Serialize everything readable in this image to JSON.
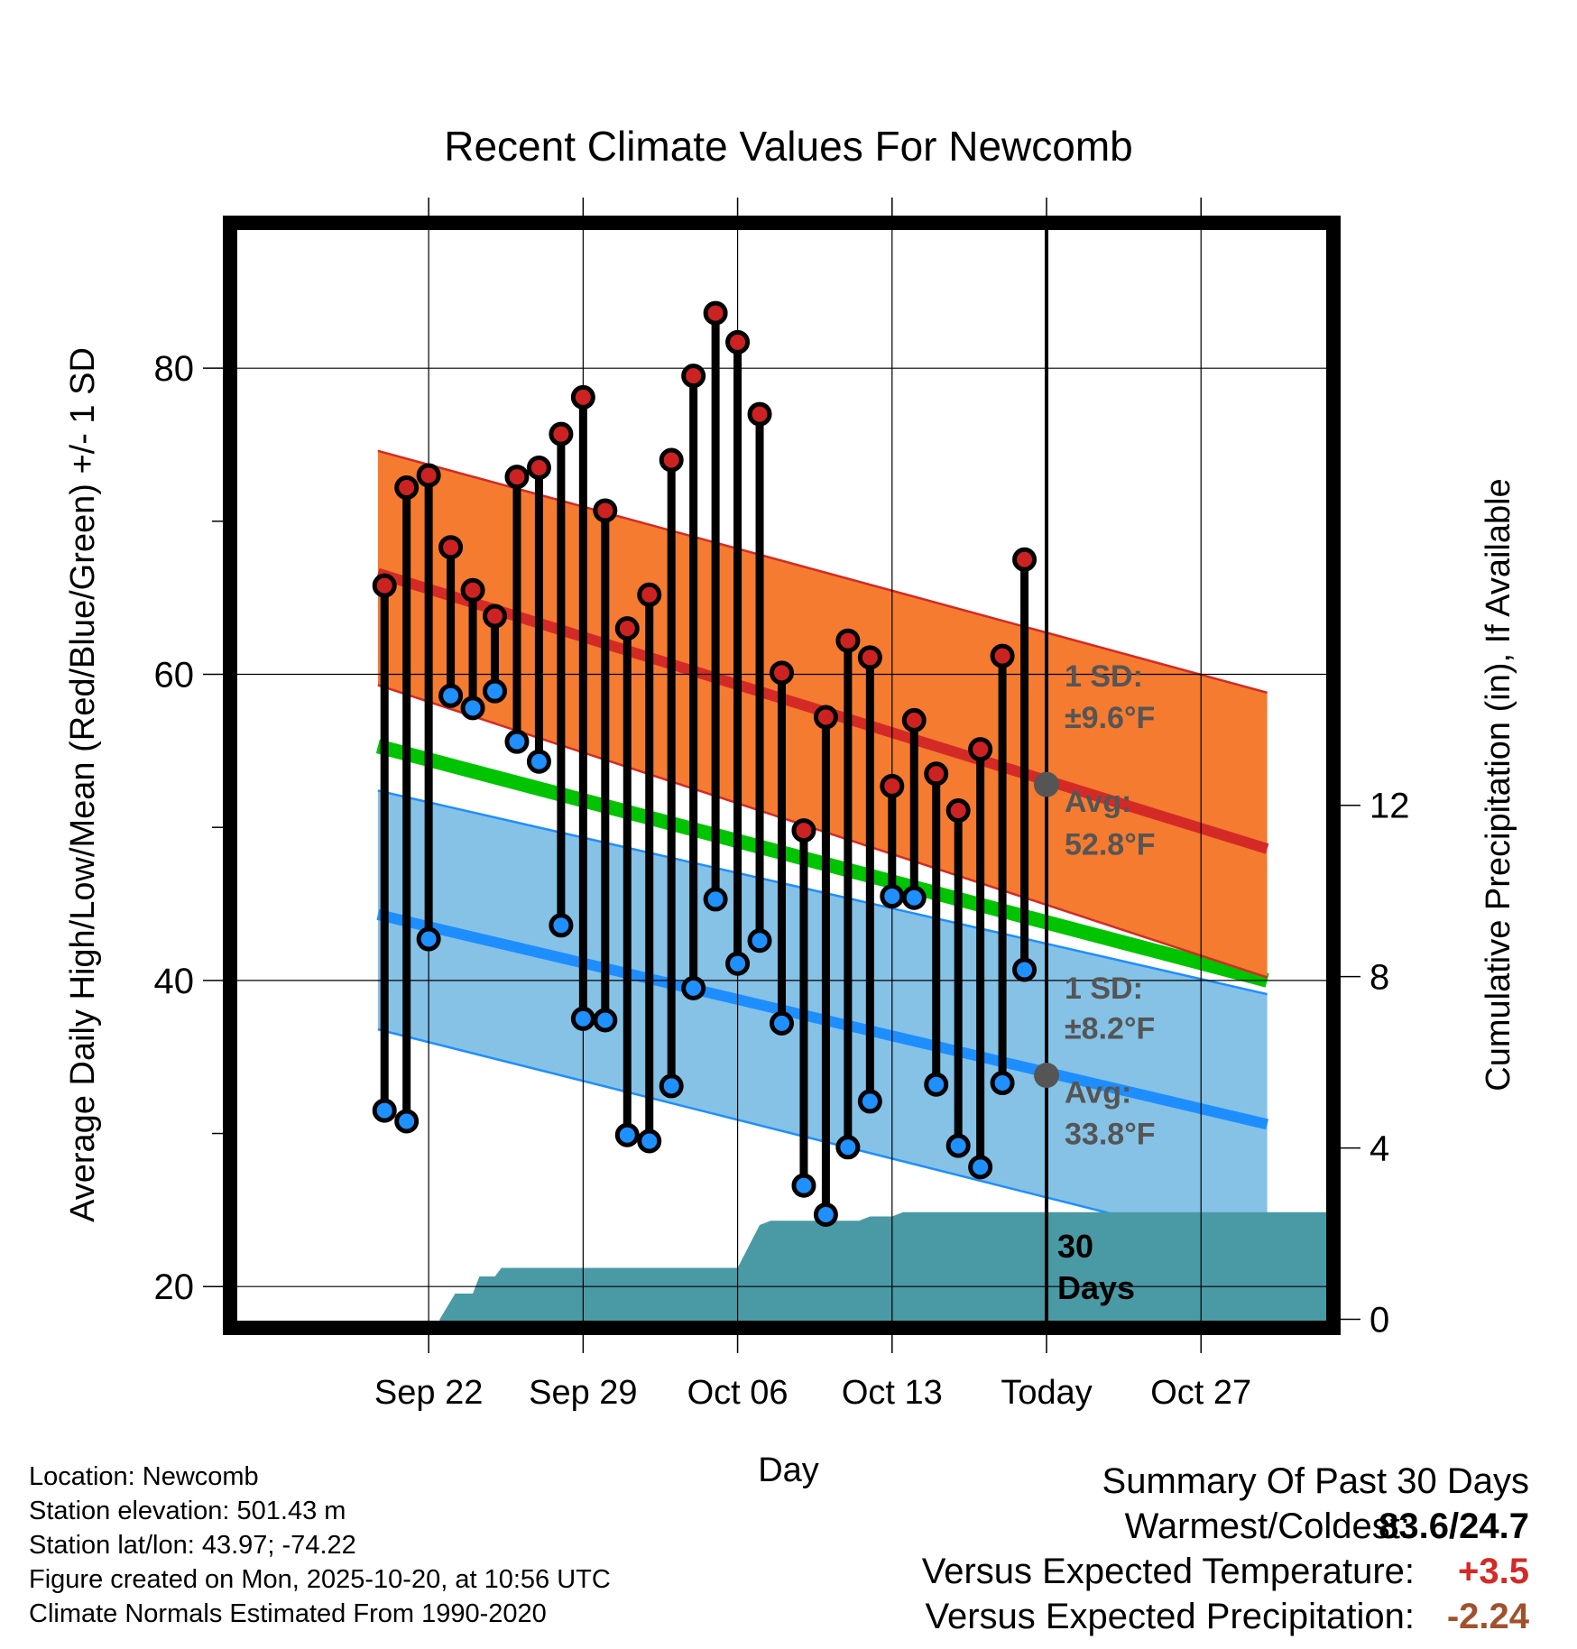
{
  "title": "Recent Climate Values For Newcomb",
  "chart_data": {
    "type": "line",
    "title": "Recent Climate Values For Newcomb",
    "xlabel": "Day",
    "ylabel": "Average Daily High/Low/Mean (Red/Blue/Green) +/- 1 SD",
    "y2label": "Cumulative Precipitation (in), If Available",
    "xlim": [
      -6,
      44
    ],
    "ylim": [
      17.3,
      89.5
    ],
    "y2lim": [
      -0.2,
      25.6
    ],
    "x_ticks": [
      {
        "x": 3,
        "label": "Sep 22"
      },
      {
        "x": 10,
        "label": "Sep 29"
      },
      {
        "x": 17,
        "label": "Oct 06"
      },
      {
        "x": 24,
        "label": "Oct 13"
      },
      {
        "x": 31,
        "label": "Today"
      },
      {
        "x": 38,
        "label": "Oct 27"
      }
    ],
    "y_ticks": [
      20,
      40,
      60,
      80
    ],
    "y2_ticks": [
      0,
      4,
      8,
      12
    ],
    "today_x": 31,
    "normals": {
      "x_start": 0.7,
      "x_end": 41,
      "high_mean": [
        66.6,
        48.6
      ],
      "high_upper": [
        74.6,
        58.8
      ],
      "high_lower": [
        59.3,
        40.2
      ],
      "low_mean": [
        44.3,
        30.6
      ],
      "low_upper": [
        52.4,
        39.1
      ],
      "low_lower": [
        36.8,
        22.2
      ],
      "daily_mean": [
        55.3,
        40.0
      ]
    },
    "annotations": {
      "high_sd_line1": "1 SD:",
      "high_sd_line2": "±9.6°F",
      "high_avg_line1": "Avg:",
      "high_avg_line2": "52.8°F",
      "high_avg_value": 52.8,
      "low_sd_line1": "1 SD:",
      "low_sd_line2": "±8.2°F",
      "low_avg_line1": "Avg:",
      "low_avg_line2": "33.8°F",
      "low_avg_value": 33.8,
      "days_line1": "30",
      "days_line2": "Days"
    },
    "series": [
      {
        "name": "Daily High",
        "color": "#cc2222",
        "x": [
          1,
          2,
          3,
          4,
          5,
          6,
          7,
          8,
          9,
          10,
          11,
          12,
          13,
          14,
          15,
          16,
          17,
          18,
          19,
          20,
          21,
          22,
          23,
          24,
          25,
          26,
          27,
          28,
          29,
          30
        ],
        "values": [
          65.8,
          72.2,
          73.0,
          68.3,
          65.5,
          63.8,
          72.9,
          73.5,
          75.7,
          78.1,
          70.7,
          63.0,
          65.2,
          74.0,
          79.5,
          83.6,
          81.7,
          77.0,
          60.1,
          49.8,
          57.2,
          62.2,
          61.1,
          52.7,
          57.0,
          53.5,
          51.1,
          55.1,
          61.2,
          67.5
        ]
      },
      {
        "name": "Daily Low",
        "color": "#1e90ff",
        "x": [
          1,
          2,
          3,
          4,
          5,
          6,
          7,
          8,
          9,
          10,
          11,
          12,
          13,
          14,
          15,
          16,
          17,
          18,
          19,
          20,
          21,
          22,
          23,
          24,
          25,
          26,
          27,
          28,
          29,
          30
        ],
        "values": [
          31.5,
          30.8,
          42.7,
          58.6,
          57.8,
          58.9,
          55.6,
          54.3,
          43.6,
          37.5,
          37.4,
          29.9,
          29.5,
          33.1,
          39.5,
          45.3,
          41.1,
          42.6,
          37.2,
          26.6,
          24.7,
          29.1,
          32.1,
          45.5,
          45.4,
          33.2,
          29.2,
          27.8,
          33.3,
          40.7
        ]
      },
      {
        "name": "Cumulative Precipitation",
        "color": "#4a9aa5",
        "axis": "y2",
        "x": [
          3.5,
          4.2,
          5,
          5.3,
          6,
          6.3,
          17,
          18,
          18.5,
          22.5,
          23,
          24,
          24.5,
          32,
          44
        ],
        "values": [
          0,
          0.6,
          0.6,
          1.0,
          1.0,
          1.2,
          1.2,
          2.2,
          2.3,
          2.3,
          2.4,
          2.4,
          2.5,
          2.5,
          2.5
        ]
      }
    ]
  },
  "footer": {
    "location": "Location: Newcomb",
    "elevation": "Station elevation: 501.43 m",
    "latlon": "Station lat/lon: 43.97; -74.22",
    "created": "Figure created on Mon, 2025-10-20, at 10:56 UTC",
    "normals": "Climate Normals Estimated From 1990-2020"
  },
  "summary": {
    "title": "Summary Of Past 30 Days",
    "warmest_label": "Warmest/Coldest:",
    "warmest_value": "83.6/24.7",
    "temp_label": "Versus Expected Temperature:",
    "temp_value": "+3.5",
    "precip_label": "Versus Expected Precipitation:",
    "precip_value": "-2.24"
  },
  "colors": {
    "high_band": "#f47b30",
    "high_line": "#d42a26",
    "low_band": "#85c2e6",
    "low_line": "#1e8eff",
    "mean_line": "#00c400",
    "precip": "#4a9aa5",
    "annotation": "#555555",
    "temp_value": "#d42a26",
    "precip_value": "#a0522d"
  }
}
